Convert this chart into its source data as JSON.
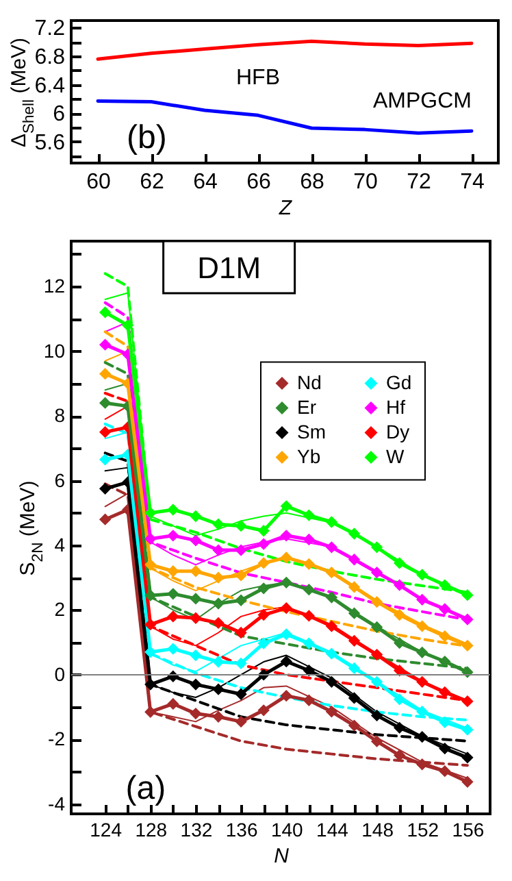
{
  "chart_data": [
    {
      "type": "line",
      "xlabel": "Z",
      "ylabel": "Δ$_{Shell}$ (MeV)",
      "annotations": [
        "(b)"
      ],
      "legend": false,
      "x": [
        60,
        62,
        64,
        66,
        68,
        70,
        72,
        74
      ],
      "xlim": [
        59,
        75
      ],
      "xticks": [
        60,
        62,
        64,
        66,
        68,
        70,
        72,
        74
      ],
      "ylim": [
        5.3,
        7.3
      ],
      "yticks": [
        {
          "value": 5.4,
          "label": null
        },
        5.6,
        {
          "value": 5.8,
          "label": null
        },
        6,
        {
          "value": 6.2,
          "label": null
        },
        6.4,
        {
          "value": 6.6,
          "label": null
        },
        6.8,
        {
          "value": 7.0,
          "label": null
        },
        7.2
      ],
      "series": [
        {
          "name": "HFB",
          "color": "#ff0000",
          "values": [
            6.76,
            6.84,
            6.9,
            6.96,
            7.01,
            6.97,
            6.95,
            6.98
          ]
        },
        {
          "name": "AMPGCM",
          "color": "#0000ff",
          "values": [
            6.17,
            6.16,
            6.04,
            5.97,
            5.79,
            5.77,
            5.72,
            5.75
          ]
        }
      ]
    },
    {
      "type": "line",
      "xlabel": "N",
      "ylabel": "S$_{2N}$ (MeV)",
      "annotations": [
        "D1M",
        "(a)"
      ],
      "legend": "top right",
      "x": [
        124,
        126,
        128,
        130,
        132,
        134,
        136,
        138,
        140,
        142,
        144,
        146,
        148,
        150,
        152,
        154,
        156
      ],
      "xlim": [
        121,
        158
      ],
      "xticks": [
        124,
        {
          "value": 126,
          "label": null
        },
        128,
        {
          "value": 130,
          "label": null
        },
        132,
        {
          "value": 134,
          "label": null
        },
        136,
        {
          "value": 138,
          "label": null
        },
        140,
        {
          "value": 142,
          "label": null
        },
        144,
        {
          "value": 146,
          "label": null
        },
        148,
        {
          "value": 150,
          "label": null
        },
        152,
        {
          "value": 154,
          "label": null
        },
        156
      ],
      "ylim": [
        -4.3,
        13.4
      ],
      "yticks": [
        -4,
        {
          "value": -3,
          "label": null
        },
        -2,
        {
          "value": -1,
          "label": null
        },
        0,
        {
          "value": 1,
          "label": null
        },
        2,
        {
          "value": 3,
          "label": null
        },
        4,
        {
          "value": 5,
          "label": null
        },
        6,
        {
          "value": 7,
          "label": null
        },
        8,
        {
          "value": 9,
          "label": null
        },
        10,
        {
          "value": 11,
          "label": null
        },
        12,
        {
          "value": 13,
          "label": null
        }
      ],
      "ref_lines": [
        {
          "axis": "y",
          "value": 0,
          "color": "#808080"
        }
      ],
      "series": [
        {
          "x": [
            124,
            126,
            128,
            130,
            132,
            134,
            136,
            138,
            140,
            144,
            148,
            152,
            156
          ],
          "color": "#a52a2a",
          "values": [
            5.2,
            5.6,
            -1.15,
            -1.3,
            -1.45,
            -1.1,
            -0.8,
            -0.4,
            -0.35,
            -1.0,
            -1.95,
            -2.7,
            -3.2
          ]
        },
        {
          "x": [
            124,
            126,
            128,
            130,
            132,
            134,
            136,
            138,
            140,
            144,
            148,
            152,
            156
          ],
          "color": "#000000",
          "values": [
            6.3,
            6.4,
            -0.3,
            -0.55,
            -0.7,
            -0.4,
            0.0,
            0.4,
            0.6,
            -0.1,
            -1.15,
            -1.9,
            -2.45
          ]
        },
        {
          "x": [
            124,
            126,
            128,
            130,
            132,
            134,
            136,
            138,
            140,
            144,
            148,
            152,
            156
          ],
          "color": "#00ffff",
          "values": [
            7.3,
            7.5,
            0.65,
            0.3,
            0.1,
            0.5,
            0.9,
            1.1,
            1.3,
            0.7,
            -0.2,
            -1.1,
            -1.65
          ]
        },
        {
          "x": [
            124,
            126,
            128,
            130,
            132,
            134,
            136,
            138,
            140,
            144,
            148,
            152,
            156
          ],
          "color": "#ff0000",
          "values": [
            7.9,
            8.3,
            1.5,
            1.1,
            0.9,
            1.3,
            1.8,
            2.0,
            2.1,
            1.55,
            0.65,
            -0.2,
            -0.8
          ]
        },
        {
          "x": [
            124,
            126,
            128,
            130,
            132,
            134,
            136,
            138,
            140,
            144,
            148,
            152,
            156
          ],
          "color": "#2e8b2e",
          "values": [
            8.8,
            9.0,
            2.4,
            2.0,
            1.7,
            2.2,
            2.6,
            2.75,
            2.85,
            2.4,
            1.5,
            0.7,
            0.1
          ]
        },
        {
          "x": [
            124,
            126,
            128,
            130,
            132,
            134,
            136,
            138,
            140,
            144,
            148,
            152,
            156
          ],
          "color": "#ffa500",
          "values": [
            9.7,
            10.0,
            3.3,
            2.9,
            2.6,
            2.9,
            3.2,
            3.45,
            3.6,
            3.2,
            2.3,
            1.55,
            0.95
          ]
        },
        {
          "x": [
            124,
            126,
            128,
            130,
            132,
            134,
            136,
            138,
            140,
            144,
            148,
            152,
            156
          ],
          "color": "#ff00ff",
          "values": [
            10.6,
            10.9,
            4.1,
            3.7,
            3.4,
            3.7,
            3.95,
            4.1,
            4.2,
            3.95,
            3.2,
            2.35,
            1.75
          ]
        },
        {
          "x": [
            124,
            126,
            128,
            130,
            132,
            134,
            136,
            138,
            140,
            144,
            148,
            152,
            156
          ],
          "color": "#00ff00",
          "values": [
            11.6,
            11.8,
            4.9,
            4.6,
            4.3,
            4.5,
            4.75,
            4.9,
            5.0,
            4.7,
            3.95,
            3.1,
            2.5
          ]
        },
        {
          "x": [
            124,
            126,
            128,
            132,
            136,
            140,
            144,
            148,
            152,
            156
          ],
          "line_style": "dashed",
          "color": "#a52a2a",
          "values": [
            5.9,
            5.55,
            -1.15,
            -1.6,
            -2.05,
            -2.3,
            -2.45,
            -2.6,
            -2.7,
            -2.8
          ]
        },
        {
          "x": [
            124,
            126,
            128,
            132,
            136,
            140,
            144,
            148,
            152,
            156
          ],
          "line_style": "dashed",
          "color": "#000000",
          "values": [
            6.85,
            6.6,
            -0.3,
            -0.8,
            -1.3,
            -1.55,
            -1.7,
            -1.85,
            -1.95,
            -2.05
          ]
        },
        {
          "x": [
            124,
            126,
            128,
            132,
            136,
            140,
            144,
            148,
            152,
            156
          ],
          "line_style": "dashed",
          "color": "#00ffff",
          "values": [
            7.75,
            7.45,
            0.65,
            0.05,
            -0.4,
            -0.7,
            -0.95,
            -1.15,
            -1.3,
            -1.4
          ]
        },
        {
          "x": [
            124,
            126,
            128,
            132,
            136,
            140,
            144,
            148,
            152,
            156
          ],
          "line_style": "dashed",
          "color": "#ff0000",
          "values": [
            8.7,
            8.45,
            1.5,
            0.9,
            0.3,
            0.0,
            -0.2,
            -0.4,
            -0.6,
            -0.8
          ]
        },
        {
          "x": [
            124,
            126,
            128,
            132,
            136,
            140,
            144,
            148,
            152,
            156
          ],
          "line_style": "dashed",
          "color": "#2e8b2e",
          "values": [
            9.65,
            9.3,
            2.4,
            1.8,
            1.2,
            0.95,
            0.7,
            0.5,
            0.35,
            0.2
          ]
        },
        {
          "x": [
            124,
            126,
            128,
            132,
            136,
            140,
            144,
            148,
            152,
            156
          ],
          "line_style": "dashed",
          "color": "#ffa500",
          "values": [
            10.6,
            10.15,
            3.3,
            2.7,
            2.3,
            1.95,
            1.65,
            1.35,
            1.1,
            0.88
          ]
        },
        {
          "x": [
            124,
            126,
            128,
            132,
            136,
            140,
            144,
            148,
            152,
            156
          ],
          "line_style": "dashed",
          "color": "#ff00ff",
          "values": [
            11.5,
            11.05,
            4.1,
            3.6,
            3.15,
            2.85,
            2.55,
            2.2,
            1.95,
            1.7
          ]
        },
        {
          "x": [
            124,
            126,
            128,
            132,
            136,
            140,
            144,
            148,
            152,
            156
          ],
          "line_style": "dashed",
          "color": "#00ff00",
          "values": [
            12.4,
            12.0,
            4.8,
            4.4,
            3.9,
            3.5,
            3.2,
            2.95,
            2.75,
            2.55
          ]
        },
        {
          "name": "Nd",
          "marker": "diamond",
          "color": "#a52a2a",
          "values": [
            4.8,
            5.1,
            -1.15,
            -0.9,
            -1.2,
            -1.3,
            -1.45,
            -1.1,
            -0.65,
            -0.79,
            -1.14,
            -1.57,
            -2.06,
            -2.49,
            -2.77,
            -2.98,
            -3.31
          ]
        },
        {
          "name": "Sm",
          "marker": "diamond",
          "color": "#000000",
          "values": [
            5.75,
            5.95,
            -0.3,
            -0.05,
            -0.3,
            -0.45,
            -0.6,
            0.0,
            0.41,
            0.13,
            -0.22,
            -0.72,
            -1.26,
            -1.64,
            -1.92,
            -2.28,
            -2.56
          ]
        },
        {
          "name": "Gd",
          "marker": "diamond",
          "color": "#00ffff",
          "values": [
            6.65,
            6.8,
            0.7,
            0.8,
            0.6,
            0.4,
            0.35,
            0.97,
            1.25,
            0.97,
            0.65,
            0.2,
            -0.22,
            -0.76,
            -1.14,
            -1.47,
            -1.7
          ]
        },
        {
          "name": "Dy",
          "marker": "diamond",
          "color": "#ff0000",
          "values": [
            7.5,
            7.65,
            1.55,
            1.8,
            1.75,
            1.6,
            1.3,
            1.85,
            2.06,
            1.82,
            1.5,
            1.05,
            0.62,
            0.13,
            -0.22,
            -0.54,
            -0.82
          ]
        },
        {
          "name": "Er",
          "marker": "diamond",
          "color": "#2e8b2e",
          "values": [
            8.4,
            8.3,
            2.45,
            2.5,
            2.35,
            2.2,
            2.3,
            2.67,
            2.85,
            2.63,
            2.39,
            1.9,
            1.47,
            0.98,
            0.69,
            0.41,
            0.08
          ]
        },
        {
          "name": "Yb",
          "marker": "diamond",
          "color": "#ffa500",
          "values": [
            9.3,
            9.0,
            3.4,
            3.2,
            3.2,
            3.0,
            3.07,
            3.45,
            3.62,
            3.42,
            3.16,
            2.71,
            2.25,
            1.85,
            1.5,
            1.19,
            0.9
          ]
        },
        {
          "name": "Hf",
          "marker": "diamond",
          "color": "#ff00ff",
          "values": [
            10.2,
            9.9,
            4.2,
            4.3,
            4.15,
            3.85,
            3.85,
            4.04,
            4.3,
            4.18,
            3.94,
            3.56,
            3.16,
            2.77,
            2.32,
            2.03,
            1.71
          ]
        },
        {
          "name": "W",
          "marker": "diamond",
          "color": "#00ff00",
          "values": [
            11.2,
            10.8,
            5.0,
            5.1,
            4.9,
            4.65,
            4.6,
            4.45,
            5.21,
            4.93,
            4.72,
            4.36,
            3.94,
            3.45,
            3.09,
            2.77,
            2.46
          ]
        }
      ]
    }
  ]
}
